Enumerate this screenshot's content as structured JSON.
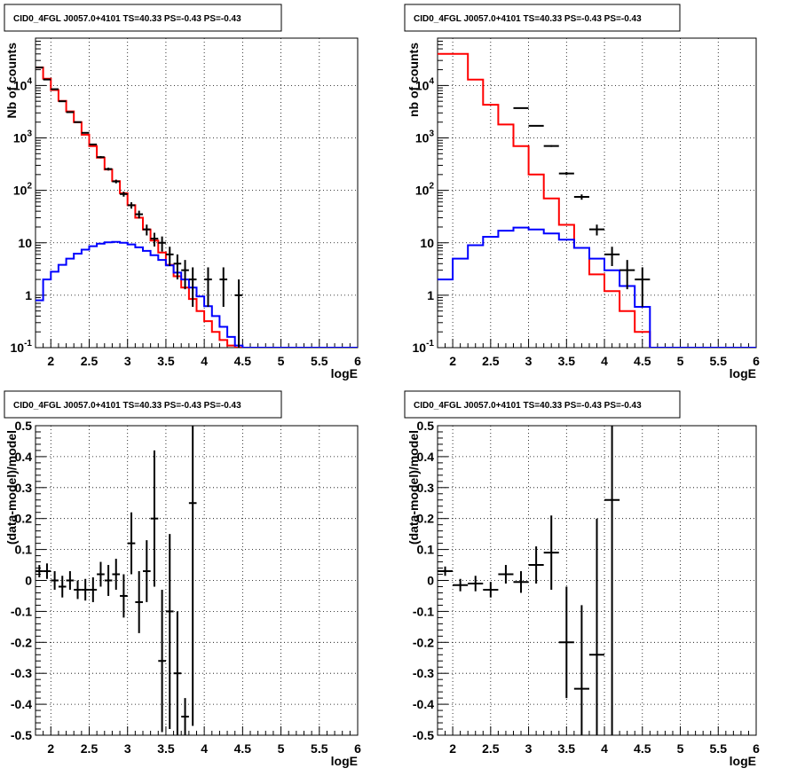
{
  "chart_data": [
    {
      "type": "line",
      "title": "CID0_4FGL J0057.0+4101 TS=40.33 PS=-0.43 PS=-0.43",
      "xlabel": "logE",
      "ylabel": "Nb of counts",
      "yscale": "log",
      "xlim": [
        1.8,
        6.0
      ],
      "ylim": [
        0.1,
        80000
      ],
      "grid": true,
      "xticks": [
        "2",
        "2.5",
        "3",
        "3.5",
        "4",
        "4.5",
        "5",
        "5.5",
        "6"
      ],
      "yticks": [
        "10^-1",
        "1",
        "10",
        "10^2",
        "10^3",
        "10^4"
      ],
      "series": [
        {
          "color": "#ff0000",
          "kind": "step",
          "edges": [
            1.8,
            1.9,
            2.0,
            2.1,
            2.2,
            2.3,
            2.4,
            2.5,
            2.6,
            2.7,
            2.8,
            2.9,
            3.0,
            3.1,
            3.2,
            3.3,
            3.4,
            3.5,
            3.6,
            3.7,
            3.8,
            3.9,
            4.0,
            4.1,
            4.2,
            4.3,
            4.4,
            4.5,
            6.0
          ],
          "values": [
            22000,
            13500,
            8200,
            5100,
            3200,
            2000,
            1150,
            700,
            420,
            250,
            150,
            88,
            52,
            30,
            18,
            11,
            6.5,
            3.8,
            2.3,
            1.4,
            0.85,
            0.5,
            0.32,
            0.2,
            0.14,
            0.11,
            0.1,
            0.1
          ]
        },
        {
          "color": "#0000ff",
          "kind": "step",
          "edges": [
            1.8,
            1.9,
            2.0,
            2.1,
            2.2,
            2.3,
            2.4,
            2.5,
            2.6,
            2.7,
            2.8,
            2.9,
            3.0,
            3.1,
            3.2,
            3.3,
            3.4,
            3.5,
            3.6,
            3.7,
            3.8,
            3.9,
            4.0,
            4.1,
            4.2,
            4.3,
            4.4,
            4.5,
            6.0
          ],
          "values": [
            0.8,
            2.0,
            2.8,
            3.8,
            5.0,
            6.2,
            7.4,
            8.6,
            9.6,
            10.2,
            10.4,
            10.0,
            9.3,
            8.2,
            7.0,
            5.8,
            4.7,
            3.7,
            2.7,
            2.0,
            1.4,
            0.95,
            0.62,
            0.4,
            0.25,
            0.16,
            0.11,
            0.1
          ]
        }
      ],
      "points": {
        "color": "#000000",
        "x": [
          1.85,
          1.95,
          2.05,
          2.15,
          2.25,
          2.35,
          2.45,
          2.55,
          2.65,
          2.75,
          2.85,
          2.95,
          3.05,
          3.15,
          3.25,
          3.35,
          3.45,
          3.55,
          3.65,
          3.75,
          3.85,
          4.05,
          4.25,
          4.45
        ],
        "y": [
          22000,
          13000,
          8500,
          5000,
          3100,
          2000,
          1250,
          750,
          430,
          255,
          148,
          85,
          52,
          35,
          18,
          12,
          10,
          6,
          4,
          3,
          2,
          2,
          2,
          1
        ],
        "xerr": 0.05,
        "yerr_low": [
          148,
          114,
          92,
          71,
          56,
          45,
          35,
          27,
          21,
          16,
          12,
          9.2,
          7.2,
          5.9,
          4.2,
          3.5,
          3.2,
          2.4,
          2.0,
          1.7,
          1.4,
          1.4,
          1.4,
          1.0
        ],
        "yerr_high": [
          148,
          114,
          92,
          71,
          56,
          45,
          35,
          27,
          21,
          16,
          12,
          9.2,
          7.2,
          5.9,
          4.2,
          3.5,
          3.2,
          2.4,
          2.0,
          1.7,
          1.4,
          1.4,
          1.4,
          1.0
        ]
      }
    },
    {
      "type": "line",
      "title": "CID0_4FGL J0057.0+4101 TS=40.33 PS=-0.43 PS=-0.43",
      "xlabel": "logE",
      "ylabel": "nb of counts",
      "yscale": "log",
      "xlim": [
        1.8,
        6.0
      ],
      "ylim": [
        0.1,
        80000
      ],
      "grid": true,
      "xticks": [
        "2",
        "2.5",
        "3",
        "3.5",
        "4",
        "4.5",
        "5",
        "5.5",
        "6"
      ],
      "yticks": [
        "10^-1",
        "1",
        "10",
        "10^2",
        "10^3",
        "10^4"
      ],
      "series": [
        {
          "color": "#ff0000",
          "kind": "step",
          "edges": [
            1.8,
            2.0,
            2.2,
            2.4,
            2.6,
            2.8,
            3.0,
            3.2,
            3.4,
            3.6,
            3.8,
            4.0,
            4.2,
            4.4,
            4.6,
            6.0
          ],
          "values": [
            40000,
            40000,
            13000,
            4300,
            1800,
            700,
            200,
            70,
            22,
            8,
            2.5,
            1.2,
            0.5,
            0.2,
            0.1
          ]
        },
        {
          "color": "#0000ff",
          "kind": "step",
          "edges": [
            1.8,
            2.0,
            2.2,
            2.4,
            2.6,
            2.8,
            3.0,
            3.2,
            3.4,
            3.6,
            3.8,
            4.0,
            4.2,
            4.4,
            4.6,
            6.0
          ],
          "values": [
            2.0,
            5.0,
            9.0,
            13.0,
            17.0,
            19.5,
            18.0,
            15.0,
            11.5,
            8.0,
            5.0,
            3.0,
            1.5,
            0.6,
            0.1
          ]
        }
      ],
      "points": {
        "color": "#000000",
        "x": [
          2.9,
          3.1,
          3.3,
          3.5,
          3.7,
          3.9,
          4.1,
          4.3,
          4.5
        ],
        "y": [
          3700,
          1700,
          700,
          210,
          75,
          18,
          6,
          3,
          2
        ],
        "xerr": 0.1,
        "yerr_low": [
          60,
          41,
          26,
          14,
          8.7,
          4.2,
          2.4,
          1.7,
          1.4
        ],
        "yerr_high": [
          60,
          41,
          26,
          14,
          8.7,
          4.2,
          2.4,
          1.7,
          1.4
        ]
      }
    },
    {
      "type": "scatter",
      "title": "CID0_4FGL J0057.0+4101 TS=40.33 PS=-0.43 PS=-0.43",
      "xlabel": "logE",
      "ylabel": "(data-model)/model",
      "yscale": "linear",
      "xlim": [
        1.8,
        6.0
      ],
      "ylim": [
        -0.5,
        0.5
      ],
      "grid": true,
      "xticks": [
        "2",
        "2.5",
        "3",
        "3.5",
        "4",
        "4.5",
        "5",
        "5.5",
        "6"
      ],
      "yticks": [
        "-0.5",
        "-0.4",
        "-0.3",
        "-0.2",
        "-0.1",
        "0",
        "0.1",
        "0.2",
        "0.3",
        "0.4",
        "0.5"
      ],
      "points": {
        "color": "#000000",
        "x": [
          1.85,
          1.95,
          2.05,
          2.15,
          2.25,
          2.35,
          2.45,
          2.55,
          2.65,
          2.75,
          2.85,
          2.95,
          3.05,
          3.15,
          3.25,
          3.35,
          3.45,
          3.55,
          3.65,
          3.75,
          3.85
        ],
        "y": [
          0.03,
          0.03,
          0.0,
          -0.02,
          0.0,
          -0.03,
          -0.03,
          -0.03,
          0.02,
          0.0,
          0.02,
          -0.05,
          0.12,
          -0.07,
          0.03,
          0.2,
          -0.26,
          -0.1,
          -0.3,
          -0.44,
          0.25
        ],
        "xerr": 0.05,
        "yerr_low": [
          0.02,
          0.025,
          0.03,
          0.035,
          0.03,
          0.03,
          0.035,
          0.04,
          0.04,
          0.05,
          0.05,
          0.07,
          0.1,
          0.1,
          0.1,
          0.22,
          0.23,
          0.38,
          0.2,
          0.06,
          0.72
        ],
        "yerr_high": [
          0.02,
          0.025,
          0.03,
          0.035,
          0.03,
          0.03,
          0.035,
          0.04,
          0.04,
          0.05,
          0.05,
          0.07,
          0.1,
          0.1,
          0.1,
          0.22,
          0.23,
          0.25,
          0.2,
          0.06,
          0.25
        ]
      }
    },
    {
      "type": "scatter",
      "title": "CID0_4FGL J0057.0+4101 TS=40.33 PS=-0.43 PS=-0.43",
      "xlabel": "logE",
      "ylabel": "(data-model)/model",
      "yscale": "linear",
      "xlim": [
        1.8,
        6.0
      ],
      "ylim": [
        -0.5,
        0.5
      ],
      "grid": true,
      "xticks": [
        "2",
        "2.5",
        "3",
        "3.5",
        "4",
        "4.5",
        "5",
        "5.5",
        "6"
      ],
      "yticks": [
        "-0.5",
        "-0.4",
        "-0.3",
        "-0.2",
        "-0.1",
        "0",
        "0.1",
        "0.2",
        "0.3",
        "0.4",
        "0.5"
      ],
      "points": {
        "color": "#000000",
        "x": [
          1.9,
          2.1,
          2.3,
          2.5,
          2.7,
          2.9,
          3.1,
          3.3,
          3.5,
          3.7,
          3.9,
          4.1
        ],
        "y": [
          0.03,
          -0.015,
          -0.01,
          -0.03,
          0.02,
          -0.005,
          0.05,
          0.09,
          -0.2,
          -0.35,
          -0.24,
          0.26
        ],
        "xerr": 0.1,
        "yerr_low": [
          0.015,
          0.02,
          0.025,
          0.025,
          0.03,
          0.035,
          0.06,
          0.12,
          0.18,
          0.15,
          0.26,
          0.76
        ],
        "yerr_high": [
          0.015,
          0.02,
          0.025,
          0.025,
          0.03,
          0.035,
          0.06,
          0.12,
          0.18,
          0.27,
          0.44,
          0.24
        ]
      }
    }
  ]
}
